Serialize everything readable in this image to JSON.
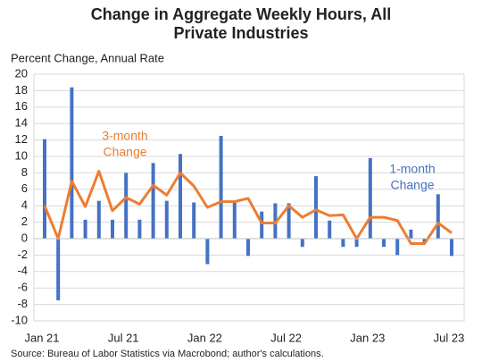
{
  "chart_data": {
    "type": "combo",
    "title": "Change in Aggregate Weekly Hours, All Private Industries",
    "y_label": "Percent Change, Annual Rate",
    "source": "Source: Bureau of Labor Statistics via Macrobond; author's calculations.",
    "categories": [
      "Jan 21",
      null,
      null,
      null,
      null,
      null,
      "Jul 21",
      null,
      null,
      null,
      null,
      null,
      "Jan 22",
      null,
      null,
      null,
      null,
      null,
      "Jul 22",
      null,
      null,
      null,
      null,
      null,
      "Jan 23",
      null,
      null,
      null,
      null,
      null,
      "Jul 23"
    ],
    "series": [
      {
        "type": "bar",
        "color": "#4472c4",
        "values": [
          12.1,
          -7.5,
          18.4,
          2.3,
          4.6,
          2.3,
          8.0,
          2.3,
          9.2,
          4.6,
          10.3,
          4.4,
          -3.1,
          12.5,
          4.5,
          -2.1,
          3.3,
          4.3,
          4.3,
          -1.0,
          7.6,
          2.2,
          -1.0,
          -1.0,
          9.8,
          -1.0,
          -2.0,
          1.1,
          -0.5,
          5.4,
          -2.1
        ]
      },
      {
        "type": "line",
        "color": "#ed7d31",
        "values": [
          4.0,
          0.0,
          7.0,
          3.9,
          8.2,
          3.4,
          5.0,
          4.2,
          6.5,
          5.3,
          8.0,
          6.4,
          3.8,
          4.5,
          4.5,
          4.9,
          1.9,
          1.9,
          4.0,
          2.6,
          3.5,
          2.8,
          2.9,
          0.0,
          2.6,
          2.6,
          2.2,
          -0.6,
          -0.6,
          1.9,
          0.7
        ]
      }
    ],
    "annotations": [
      {
        "lines": [
          "3-month",
          "Change"
        ],
        "color": "#ed7d31"
      },
      {
        "lines": [
          "1-month",
          "Change"
        ],
        "color": "#4472c4"
      }
    ],
    "ylim": [
      -10,
      20
    ],
    "yticks": [
      -10,
      -8,
      -6,
      -4,
      -2,
      0,
      2,
      4,
      6,
      8,
      10,
      12,
      14,
      16,
      18,
      20
    ],
    "grid": true
  }
}
